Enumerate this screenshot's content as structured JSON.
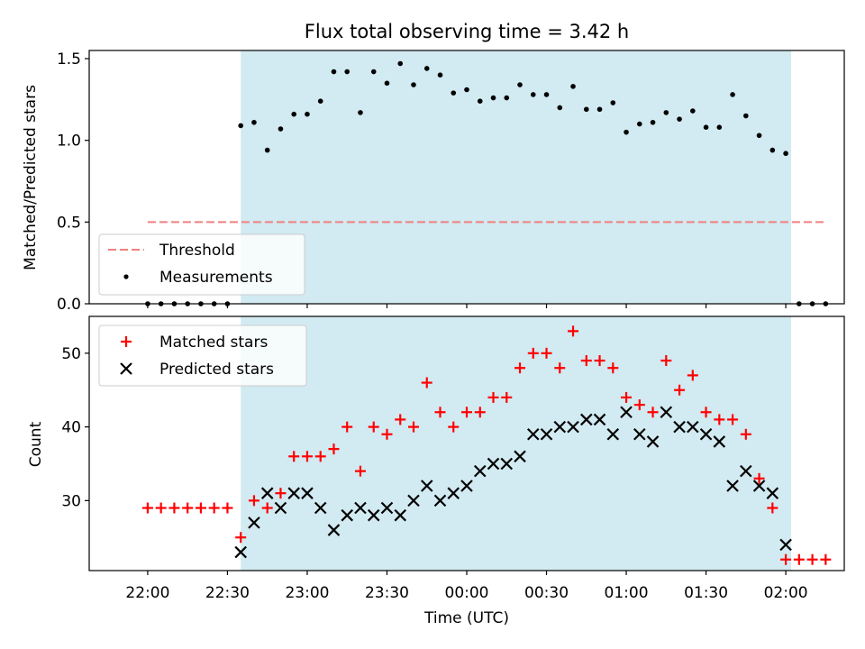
{
  "chart_data": [
    {
      "type": "scatter",
      "title": "Flux total observing time = 3.42 h",
      "ylabel": "Matched/Predicted stars",
      "xlim_minutes": [
        -22,
        262
      ],
      "ylim": [
        0,
        1.55
      ],
      "y_ticks": [
        "0.0",
        "0.5",
        "1.0",
        "1.5"
      ],
      "y_tick_values": [
        0,
        0.5,
        1.0,
        1.5
      ],
      "observing_window_minutes": [
        35,
        242
      ],
      "threshold": {
        "name": "Threshold",
        "value": 0.5,
        "x_range_minutes": [
          0,
          255
        ],
        "color": "#f08080"
      },
      "measurements": {
        "name": "Measurements",
        "color": "#000000",
        "x_minutes": [
          0,
          5,
          10,
          15,
          20,
          25,
          30,
          35,
          40,
          45,
          50,
          55,
          60,
          65,
          70,
          75,
          80,
          85,
          90,
          95,
          100,
          105,
          110,
          115,
          120,
          125,
          130,
          135,
          140,
          145,
          150,
          155,
          160,
          165,
          170,
          175,
          180,
          185,
          190,
          195,
          200,
          205,
          210,
          215,
          220,
          225,
          230,
          235,
          240,
          245,
          250,
          255
        ],
        "values": [
          0,
          0,
          0,
          0,
          0,
          0,
          0,
          1.09,
          1.11,
          0.94,
          1.07,
          1.16,
          1.16,
          1.24,
          1.42,
          1.42,
          1.17,
          1.42,
          1.35,
          1.47,
          1.34,
          1.44,
          1.4,
          1.29,
          1.31,
          1.24,
          1.26,
          1.26,
          1.34,
          1.28,
          1.28,
          1.2,
          1.33,
          1.19,
          1.19,
          1.23,
          1.05,
          1.1,
          1.11,
          1.17,
          1.13,
          1.18,
          1.08,
          1.08,
          1.28,
          1.15,
          1.03,
          0.94,
          0.92,
          0,
          0,
          0
        ]
      },
      "legend_placement": "lower-left"
    },
    {
      "type": "scatter",
      "ylabel": "Count",
      "xlabel": "Time (UTC)",
      "xlim_minutes": [
        -22,
        262
      ],
      "ylim": [
        20.5,
        55
      ],
      "y_ticks": [
        "30",
        "40",
        "50"
      ],
      "y_tick_values": [
        30,
        40,
        50
      ],
      "x_ticks": [
        "22:00",
        "22:30",
        "23:00",
        "23:30",
        "00:00",
        "00:30",
        "01:00",
        "01:30",
        "02:00"
      ],
      "x_tick_minutes": [
        0,
        30,
        60,
        90,
        120,
        150,
        180,
        210,
        240
      ],
      "observing_window_minutes": [
        35,
        242
      ],
      "series": [
        {
          "name": "Matched stars",
          "marker": "plus",
          "color": "#ff0000",
          "x_minutes": [
            0,
            5,
            10,
            15,
            20,
            25,
            30,
            35,
            40,
            45,
            50,
            55,
            60,
            65,
            70,
            75,
            80,
            85,
            90,
            95,
            100,
            105,
            110,
            115,
            120,
            125,
            130,
            135,
            140,
            145,
            150,
            155,
            160,
            165,
            170,
            175,
            180,
            185,
            190,
            195,
            200,
            205,
            210,
            215,
            220,
            225,
            230,
            235,
            240,
            245,
            250,
            255
          ],
          "values": [
            29,
            29,
            29,
            29,
            29,
            29,
            29,
            25,
            30,
            29,
            31,
            36,
            36,
            36,
            37,
            40,
            34,
            40,
            39,
            41,
            40,
            46,
            42,
            40,
            42,
            42,
            44,
            44,
            48,
            50,
            50,
            48,
            53,
            49,
            49,
            48,
            44,
            43,
            42,
            49,
            45,
            47,
            42,
            41,
            41,
            39,
            33,
            29,
            22,
            22,
            22,
            22
          ]
        },
        {
          "name": "Predicted stars",
          "marker": "x",
          "color": "#000000",
          "x_minutes": [
            35,
            40,
            45,
            50,
            55,
            60,
            65,
            70,
            75,
            80,
            85,
            90,
            95,
            100,
            105,
            110,
            115,
            120,
            125,
            130,
            135,
            140,
            145,
            150,
            155,
            160,
            165,
            170,
            175,
            180,
            185,
            190,
            195,
            200,
            205,
            210,
            215,
            220,
            225,
            230,
            235,
            240
          ],
          "values": [
            23,
            27,
            31,
            29,
            31,
            31,
            29,
            26,
            28,
            29,
            28,
            29,
            28,
            30,
            32,
            30,
            31,
            32,
            34,
            35,
            35,
            36,
            39,
            39,
            40,
            40,
            41,
            41,
            39,
            42,
            39,
            38,
            42,
            40,
            40,
            39,
            38,
            32,
            34,
            32,
            31,
            24
          ]
        }
      ],
      "legend_placement": "upper-left"
    }
  ],
  "colors": {
    "window_fill": "#add8e6"
  }
}
